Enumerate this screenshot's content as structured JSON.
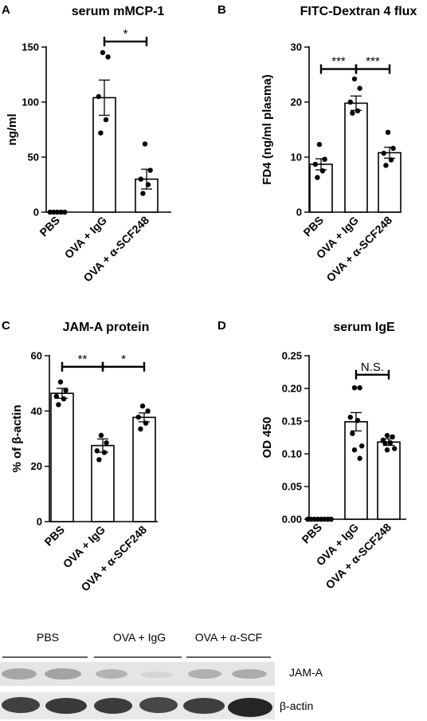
{
  "chart_data": [
    {
      "panel": "A",
      "type": "bar",
      "title": "serum mMCP-1",
      "xlabel": "",
      "ylabel": "ng/ml",
      "categories": [
        "PBS",
        "OVA + IgG",
        "OVA + α-SCF248"
      ],
      "values": [
        0,
        104,
        30
      ],
      "errors": [
        0,
        16,
        9
      ],
      "points": [
        [
          0,
          0,
          0,
          0,
          0
        ],
        [
          145,
          141,
          105,
          84,
          72
        ],
        [
          62,
          38,
          30,
          25,
          17
        ]
      ],
      "ylim": [
        0,
        150
      ],
      "yticks": [
        "0",
        "50",
        "100",
        "150"
      ],
      "significance": [
        {
          "from": 1,
          "to": 2,
          "label": "*",
          "y": 155
        }
      ]
    },
    {
      "panel": "B",
      "type": "bar",
      "title": "FITC-Dextran 4 flux",
      "xlabel": "",
      "ylabel": "FD4 (ng/ml plasma)",
      "categories": [
        "PBS",
        "OVA + IgG",
        "OVA + α-SCF248"
      ],
      "values": [
        8.7,
        19.8,
        10.8
      ],
      "errors": [
        1.0,
        1.3,
        1.0
      ],
      "points": [
        [
          12.3,
          9.6,
          8.7,
          7.5,
          6.3
        ],
        [
          24.2,
          22.5,
          20.0,
          18.4,
          18.0
        ],
        [
          14.5,
          11.6,
          10.7,
          9.5,
          8.5
        ]
      ],
      "ylim": [
        0,
        30
      ],
      "yticks": [
        "0",
        "10",
        "20",
        "30"
      ],
      "significance": [
        {
          "from": 0,
          "to": 1,
          "label": "***",
          "y": 26
        },
        {
          "from": 1,
          "to": 2,
          "label": "***",
          "y": 26
        }
      ]
    },
    {
      "panel": "C",
      "type": "bar",
      "title": "JAM-A protein",
      "xlabel": "",
      "ylabel": "% of β-actin",
      "categories": [
        "PBS",
        "OVA + IgG",
        "OVA + α-SCF248"
      ],
      "values": [
        46.4,
        27.5,
        37.7
      ],
      "errors": [
        1.8,
        2.4,
        1.6
      ],
      "points": [
        [
          50.5,
          47.5,
          45.3,
          44.4,
          42.3
        ],
        [
          31.2,
          28.5,
          25.6,
          25.0,
          22.4
        ],
        [
          41.8,
          40.0,
          37.8,
          35.6,
          33.5
        ]
      ],
      "ylim": [
        0,
        60
      ],
      "yticks": [
        "0",
        "20",
        "40",
        "60"
      ],
      "significance": [
        {
          "from": 0,
          "to": 1,
          "label": "**",
          "y": 56
        },
        {
          "from": 1,
          "to": 2,
          "label": "*",
          "y": 56
        }
      ]
    },
    {
      "panel": "D",
      "type": "bar",
      "title": "serum IgE",
      "xlabel": "",
      "ylabel": "OD 450",
      "categories": [
        "PBS",
        "OVA + IgG",
        "OVA + α-SCF248"
      ],
      "values": [
        0.0,
        0.149,
        0.118
      ],
      "errors": [
        0.0,
        0.014,
        0.005
      ],
      "points": [
        [
          0,
          0,
          0,
          0,
          0,
          0,
          0,
          0
        ],
        [
          0.201,
          0.201,
          0.156,
          0.151,
          0.131,
          0.112,
          0.106,
          0.093
        ],
        [
          0.128,
          0.126,
          0.121,
          0.117,
          0.116,
          0.108,
          0.106
        ]
      ],
      "ylim": [
        0,
        0.25
      ],
      "yticks": [
        "0.00",
        "0.05",
        "0.10",
        "0.15",
        "0.20",
        "0.25"
      ],
      "significance": [
        {
          "from": 1,
          "to": 2,
          "label": "N.S.",
          "y": 0.221
        }
      ]
    }
  ],
  "blot": {
    "groups": [
      "PBS",
      "OVA + IgG",
      "OVA + α-SCF"
    ],
    "bands": [
      "JAM-A",
      "β-actin"
    ]
  }
}
